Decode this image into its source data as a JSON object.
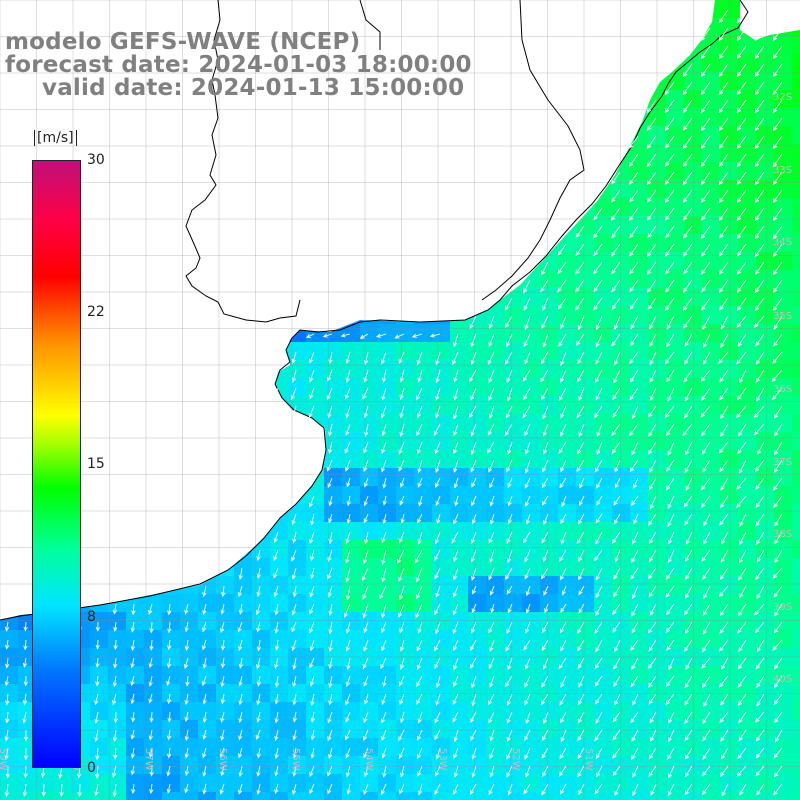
{
  "map": {
    "title_line1": "modelo GEFS-WAVE (NCEP)",
    "title_line2": "forecast date: 2024-01-03 18:00:00",
    "title_line3": "valid date: 2024-01-13 15:00:00",
    "variable": "wind speed",
    "colorbar": {
      "units": "[m/s]",
      "ticks": [
        "30",
        "22",
        "15",
        "8",
        "0"
      ],
      "tick_values": [
        30,
        22,
        15,
        8,
        0
      ],
      "range": [
        0,
        30
      ],
      "colors": [
        "#0000ff",
        "#0077ff",
        "#00e5ff",
        "#00ff99",
        "#00ff00",
        "#a6ff00",
        "#ffff00",
        "#ff9000",
        "#ff0000",
        "#ff0044",
        "#c0107a"
      ]
    },
    "lat_labels": [
      "32S",
      "33S",
      "34S",
      "35S",
      "36S",
      "37S",
      "38S",
      "39S",
      "40S"
    ],
    "lon_labels": [
      "59W",
      "58W",
      "57W",
      "56W",
      "55W",
      "54W",
      "53W",
      "52W",
      "51W"
    ],
    "land_color": "#ffffff",
    "grid_color": "#8a8a8a",
    "coast_color": "#000000",
    "arrow_color": "#ffffff"
  }
}
